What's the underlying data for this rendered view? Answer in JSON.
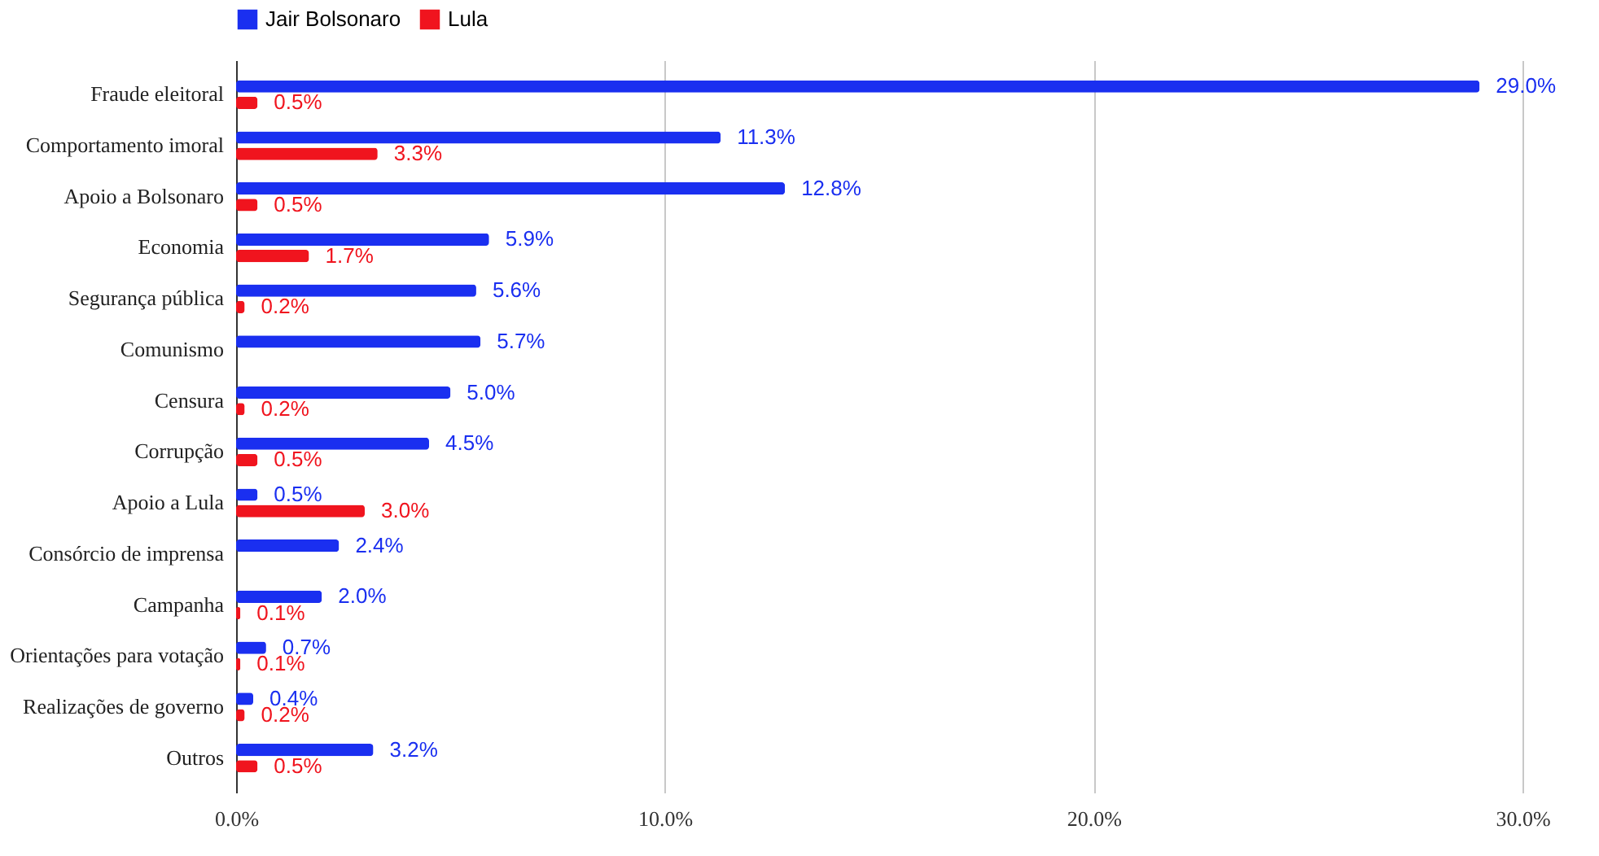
{
  "chart_data": {
    "type": "bar",
    "orientation": "horizontal",
    "categories": [
      "Fraude eleitoral",
      "Comportamento imoral",
      "Apoio a Bolsonaro",
      "Economia",
      "Segurança pública",
      "Comunismo",
      "Censura",
      "Corrupção",
      "Apoio a Lula",
      "Consórcio de imprensa",
      "Campanha",
      "Orientações para votação",
      "Realizações de governo",
      "Outros"
    ],
    "series": [
      {
        "name": "Jair Bolsonaro",
        "color": "#1a2ff0",
        "values": [
          29.0,
          11.3,
          12.8,
          5.9,
          5.6,
          5.7,
          5.0,
          4.5,
          0.5,
          2.4,
          2.0,
          0.7,
          0.4,
          3.2
        ],
        "value_labels": [
          "29.0%",
          "11.3%",
          "12.8%",
          "5.9%",
          "5.6%",
          "5.7%",
          "5.0%",
          "4.5%",
          "0.5%",
          "2.4%",
          "2.0%",
          "0.7%",
          "0.4%",
          "3.2%"
        ]
      },
      {
        "name": "Lula",
        "color": "#f0141e",
        "values": [
          0.5,
          3.3,
          0.5,
          1.7,
          0.2,
          null,
          0.2,
          0.5,
          3.0,
          null,
          0.1,
          0.1,
          0.2,
          0.5
        ],
        "value_labels": [
          "0.5%",
          "3.3%",
          "0.5%",
          "1.7%",
          "0.2%",
          null,
          "0.2%",
          "0.5%",
          "3.0%",
          null,
          "0.1%",
          "0.1%",
          "0.2%",
          "0.5%"
        ]
      }
    ],
    "xlim": [
      0,
      30
    ],
    "xticks": [
      {
        "value": 0,
        "label": "0.0%"
      },
      {
        "value": 10,
        "label": "10.0%"
      },
      {
        "value": 20,
        "label": "20.0%"
      },
      {
        "value": 30,
        "label": "30.0%"
      }
    ],
    "grid": "x",
    "legend": "top"
  }
}
